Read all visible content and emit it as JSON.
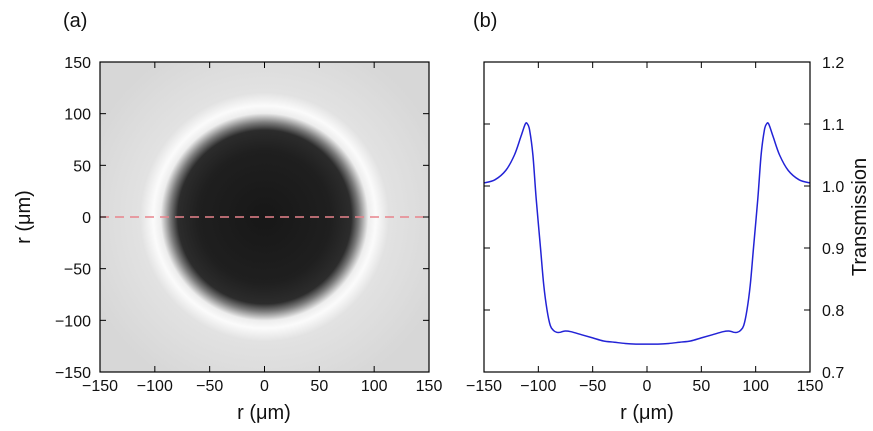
{
  "chart_data": [
    {
      "type": "heatmap",
      "panel_label": "(a)",
      "xlabel": "r (μm)",
      "ylabel": "r (μm)",
      "xlim": [
        -150,
        150
      ],
      "ylim": [
        -150,
        150
      ],
      "x_ticks": [
        -150,
        -100,
        -50,
        0,
        50,
        100,
        150
      ],
      "y_ticks": [
        -150,
        -100,
        -50,
        0,
        50,
        100,
        150
      ],
      "x_tick_labels": [
        "−150",
        "−100",
        "−50",
        "0",
        "50",
        "100",
        "150"
      ],
      "y_tick_labels": [
        "−150",
        "−100",
        "−50",
        "0",
        "50",
        "100",
        "150"
      ],
      "colormap": "grayscale",
      "features": {
        "dark_disk_radius": 100,
        "bright_ring_radius": 112,
        "background_level": "light gray"
      },
      "cut_line": {
        "y": 0,
        "style": "dashed",
        "color": "#e8838c"
      }
    },
    {
      "type": "line",
      "panel_label": "(b)",
      "xlabel": "r (μm)",
      "ylabel": "Transmission",
      "y_axis_side": "right",
      "xlim": [
        -150,
        150
      ],
      "ylim": [
        0.7,
        1.2
      ],
      "x_ticks": [
        -150,
        -100,
        -50,
        0,
        50,
        100,
        150
      ],
      "y_ticks": [
        0.7,
        0.8,
        0.9,
        1.0,
        1.1,
        1.2
      ],
      "x_tick_labels": [
        "−150",
        "−100",
        "−50",
        "0",
        "50",
        "100",
        "150"
      ],
      "y_tick_labels": [
        "0.7",
        "0.8",
        "0.9",
        "1.0",
        "1.1",
        "1.2"
      ],
      "line_color": "#2323d6",
      "x": [
        -150,
        -140,
        -130,
        -122,
        -116,
        -112,
        -110,
        -108,
        -105,
        -102,
        -98,
        -95,
        -92,
        -89,
        -86,
        -83,
        -80,
        -76,
        -70,
        -60,
        -50,
        -40,
        -30,
        -20,
        -10,
        0,
        10,
        20,
        30,
        40,
        50,
        60,
        70,
        76,
        80,
        83,
        86,
        89,
        92,
        95,
        98,
        102,
        105,
        108,
        110,
        112,
        116,
        122,
        130,
        140,
        150
      ],
      "y": [
        1.005,
        1.01,
        1.025,
        1.05,
        1.08,
        1.1,
        1.1,
        1.09,
        1.05,
        0.98,
        0.9,
        0.84,
        0.8,
        0.775,
        0.767,
        0.764,
        0.764,
        0.766,
        0.765,
        0.76,
        0.755,
        0.75,
        0.748,
        0.746,
        0.745,
        0.745,
        0.745,
        0.746,
        0.748,
        0.75,
        0.755,
        0.76,
        0.765,
        0.766,
        0.764,
        0.764,
        0.767,
        0.775,
        0.8,
        0.84,
        0.9,
        0.98,
        1.05,
        1.09,
        1.1,
        1.1,
        1.08,
        1.05,
        1.025,
        1.01,
        1.005
      ]
    }
  ]
}
